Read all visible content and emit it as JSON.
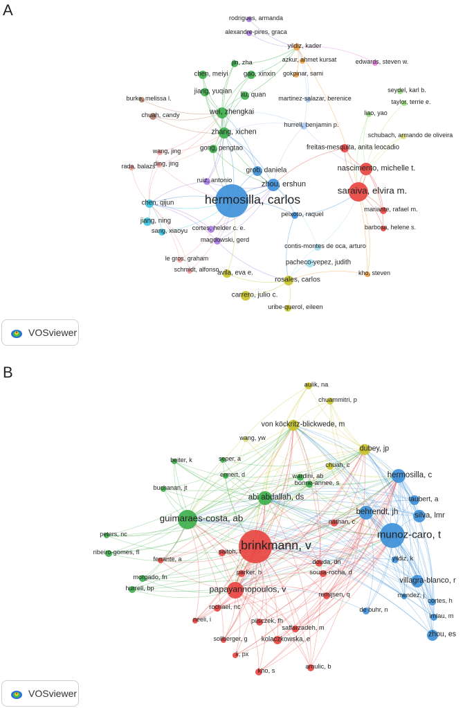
{
  "panels": [
    {
      "label": "A",
      "nodes": [
        {
          "name": "rodrigues, armanda",
          "c": "purple",
          "s": 4
        },
        {
          "name": "alexandre-pires, graca",
          "c": "purple",
          "s": 4
        },
        {
          "name": "yildiz, kader",
          "c": "orange",
          "s": 5
        },
        {
          "name": "azkur, ahmet kursat",
          "c": "orange",
          "s": 4
        },
        {
          "name": "gokpinar, sami",
          "c": "orange",
          "s": 4
        },
        {
          "name": "edwards, steven w.",
          "c": "pink",
          "s": 4
        },
        {
          "name": "jin, zha",
          "c": "green",
          "s": 5
        },
        {
          "name": "chen, meiyi",
          "c": "green",
          "s": 6
        },
        {
          "name": "gao, xinxin",
          "c": "green",
          "s": 6
        },
        {
          "name": "jiang, yuqian",
          "c": "green",
          "s": 6
        },
        {
          "name": "liu, quan",
          "c": "green",
          "s": 6
        },
        {
          "name": "wei, zhengkai",
          "c": "green",
          "s": 8
        },
        {
          "name": "zhang, xichen",
          "c": "green",
          "s": 8
        },
        {
          "name": "gong, pengtao",
          "c": "green",
          "s": 6
        },
        {
          "name": "burke, melissa l.",
          "c": "brown",
          "s": 4
        },
        {
          "name": "chuah, candy",
          "c": "brown",
          "s": 5
        },
        {
          "name": "martinez-salazar, berenice",
          "c": "lightblue",
          "s": 4
        },
        {
          "name": "hurrell, benjamin p.",
          "c": "lightblue",
          "s": 5
        },
        {
          "name": "seydel, karl b.",
          "c": "lightgreen",
          "s": 4
        },
        {
          "name": "taylor, terrie e.",
          "c": "lightgreen",
          "s": 4
        },
        {
          "name": "liao, yao",
          "c": "lightgreen",
          "s": 4
        },
        {
          "name": "schubach, armando de oliveira",
          "c": "khaki",
          "s": 4
        },
        {
          "name": "freitas-mesquita, anita leocadio",
          "c": "red",
          "s": 6
        },
        {
          "name": "nascimento, michelle t.",
          "c": "red",
          "s": 9
        },
        {
          "name": "saraiva, elvira m.",
          "c": "red",
          "s": 14
        },
        {
          "name": "mariante, rafael m.",
          "c": "red",
          "s": 5
        },
        {
          "name": "barbosa, helene s.",
          "c": "red",
          "s": 4
        },
        {
          "name": "wang, jing",
          "c": "salmon",
          "s": 4
        },
        {
          "name": "ding, jing",
          "c": "salmon",
          "s": 4
        },
        {
          "name": "rada, balazs",
          "c": "salmon",
          "s": 4
        },
        {
          "name": "grob, daniela",
          "c": "blue",
          "s": 7
        },
        {
          "name": "zhou, ershun",
          "c": "blue",
          "s": 9
        },
        {
          "name": "ruiz, antonio",
          "c": "purple",
          "s": 5
        },
        {
          "name": "hermosilla, carlos",
          "c": "blue",
          "s": 24
        },
        {
          "name": "peixoto, raquel",
          "c": "blue",
          "s": 5
        },
        {
          "name": "cortes, helder c. e.",
          "c": "purple",
          "s": 5
        },
        {
          "name": "magdowski, gerd",
          "c": "purple",
          "s": 5
        },
        {
          "name": "chen, qijun",
          "c": "cyan",
          "s": 6
        },
        {
          "name": "jiang, ning",
          "c": "cyan",
          "s": 6
        },
        {
          "name": "sang, xiaoyu",
          "c": "cyan",
          "s": 5
        },
        {
          "name": "contis-montes de oca, arturo",
          "c": "skyblue",
          "s": 5
        },
        {
          "name": "le gros, graham",
          "c": "salmon",
          "s": 4
        },
        {
          "name": "schmidt, alfonso",
          "c": "salmon",
          "s": 4
        },
        {
          "name": "pacheco-yepez, judith",
          "c": "skyblue",
          "s": 6
        },
        {
          "name": "kho, steven",
          "c": "orange",
          "s": 4
        },
        {
          "name": "avila, eva e.",
          "c": "yellow",
          "s": 6
        },
        {
          "name": "rosales, carlos",
          "c": "yellow",
          "s": 7
        },
        {
          "name": "carrero, julio c.",
          "c": "yellow",
          "s": 7
        },
        {
          "name": "uribe-querol, eileen",
          "c": "yellow",
          "s": 5
        }
      ],
      "badge": "VOSviewer"
    },
    {
      "label": "B",
      "nodes": [
        {
          "name": "aulik, na",
          "c": "yellow",
          "s": 5
        },
        {
          "name": "chuammitri, p",
          "c": "yellow",
          "s": 5
        },
        {
          "name": "von köckritz-blickwede, m",
          "c": "yellow",
          "s": 8
        },
        {
          "name": "wang, yw",
          "c": "khaki",
          "s": 4
        },
        {
          "name": "dubey, jp",
          "c": "yellow",
          "s": 8
        },
        {
          "name": "beiter, k",
          "c": "green",
          "s": 4
        },
        {
          "name": "seper, a",
          "c": "green",
          "s": 4
        },
        {
          "name": "chuah, c",
          "c": "yellow",
          "s": 5
        },
        {
          "name": "ermert, d",
          "c": "green",
          "s": 4
        },
        {
          "name": "wardini, ab",
          "c": "green",
          "s": 5
        },
        {
          "name": "bonne-annee, s",
          "c": "green",
          "s": 5
        },
        {
          "name": "hermosilla, c",
          "c": "blue",
          "s": 10
        },
        {
          "name": "buchanan, jt",
          "c": "green",
          "s": 4
        },
        {
          "name": "abi abdallah, ds",
          "c": "green",
          "s": 10
        },
        {
          "name": "taubert, a",
          "c": "blue",
          "s": 7
        },
        {
          "name": "behrendt, jh",
          "c": "blue",
          "s": 10
        },
        {
          "name": "silva, lmr",
          "c": "blue",
          "s": 9
        },
        {
          "name": "nathan, c",
          "c": "red",
          "s": 5
        },
        {
          "name": "guimaraes-costa, ab",
          "c": "green",
          "s": 14
        },
        {
          "name": "munoz-caro, t",
          "c": "blue",
          "s": 18
        },
        {
          "name": "peters, nc",
          "c": "green",
          "s": 4
        },
        {
          "name": "brinkmann, v",
          "c": "red",
          "s": 24
        },
        {
          "name": "ribeiro-gomes, fl",
          "c": "green",
          "s": 5
        },
        {
          "name": "saitoh, t",
          "c": "red",
          "s": 5
        },
        {
          "name": "ferrante, a",
          "c": "red",
          "s": 4
        },
        {
          "name": "yildiz, k",
          "c": "blue",
          "s": 5
        },
        {
          "name": "douda, dn",
          "c": "red",
          "s": 5
        },
        {
          "name": "sousa-rocha, d",
          "c": "red",
          "s": 5
        },
        {
          "name": "parker, h",
          "c": "red",
          "s": 5
        },
        {
          "name": "morgado, fn",
          "c": "green",
          "s": 5
        },
        {
          "name": "villagra-blanco, r",
          "c": "blue",
          "s": 9
        },
        {
          "name": "hurrell, bp",
          "c": "green",
          "s": 5
        },
        {
          "name": "papayannopoulos, v",
          "c": "red",
          "s": 12
        },
        {
          "name": "remijsen, q",
          "c": "red",
          "s": 5
        },
        {
          "name": "mendez, j",
          "c": "blue",
          "s": 4
        },
        {
          "name": "rochael, nc",
          "c": "red",
          "s": 5
        },
        {
          "name": "cortes, h",
          "c": "blue",
          "s": 5
        },
        {
          "name": "de buhr, n",
          "c": "blue",
          "s": 5
        },
        {
          "name": "neeli, i",
          "c": "red",
          "s": 4
        },
        {
          "name": "pilsczek, fh",
          "c": "red",
          "s": 5
        },
        {
          "name": "imlau, m",
          "c": "blue",
          "s": 5
        },
        {
          "name": "saffarzadeh, m",
          "c": "red",
          "s": 5
        },
        {
          "name": "sollberger, g",
          "c": "red",
          "s": 4
        },
        {
          "name": "kolaczkowska, e",
          "c": "red",
          "s": 6
        },
        {
          "name": "zhou, es",
          "c": "blue",
          "s": 8
        },
        {
          "name": "li, px",
          "c": "red",
          "s": 4
        },
        {
          "name": "amulic, b",
          "c": "red",
          "s": 5
        },
        {
          "name": "kho, s",
          "c": "red",
          "s": 5
        }
      ],
      "badge": "VOSviewer"
    }
  ],
  "colors": {
    "red": "#e8423f",
    "green": "#3cae4a",
    "blue": "#3b8fd8",
    "yellow": "#c9c32a",
    "purple": "#a87be0",
    "cyan": "#37c6e0",
    "orange": "#f0a040",
    "pink": "#e37de0",
    "brown": "#b5806a",
    "salmon": "#eea29c",
    "lightgreen": "#9bdf7e",
    "lightblue": "#a9c8f0",
    "khaki": "#dede7a",
    "skyblue": "#a6dff0"
  }
}
